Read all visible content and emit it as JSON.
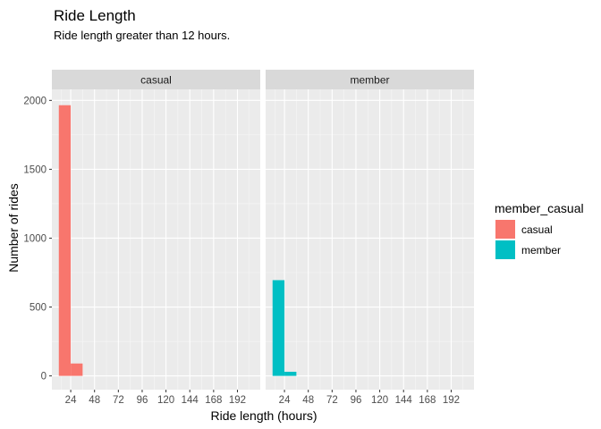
{
  "chart_data": {
    "type": "bar",
    "title": "Ride Length",
    "subtitle": "Ride length greater than 12 hours.",
    "xlabel": "Ride length (hours)",
    "ylabel": "Number of rides",
    "x_ticks": [
      24,
      48,
      72,
      96,
      120,
      144,
      168,
      192
    ],
    "y_ticks": [
      0,
      500,
      1000,
      1500,
      2000
    ],
    "xlim": [
      5,
      215
    ],
    "ylim": [
      -100,
      2080
    ],
    "bin_width": 12,
    "grid": true,
    "legend": {
      "title": "member_casual",
      "position": "right",
      "entries": [
        {
          "label": "casual",
          "color": "#F8766D"
        },
        {
          "label": "member",
          "color": "#00BFC4"
        }
      ]
    },
    "panels": [
      {
        "strip": "casual",
        "color": "#F8766D",
        "bins": [
          {
            "x0": 12,
            "x1": 24,
            "count": 1965
          },
          {
            "x0": 24,
            "x1": 36,
            "count": 90
          }
        ]
      },
      {
        "strip": "member",
        "color": "#00BFC4",
        "bins": [
          {
            "x0": 12,
            "x1": 24,
            "count": 695
          },
          {
            "x0": 24,
            "x1": 36,
            "count": 30
          }
        ]
      }
    ]
  }
}
